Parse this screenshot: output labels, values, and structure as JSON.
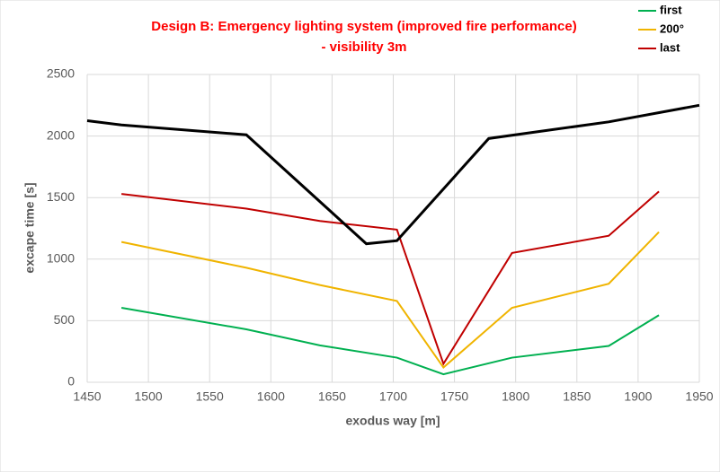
{
  "chart_data": {
    "type": "line",
    "title": [
      "Design B: Emergency lighting system (improved fire performance)",
      "- visibility 3m"
    ],
    "x_label": "exodus way [m]",
    "y_label": "excape time [s]",
    "xlim": [
      1450,
      1950
    ],
    "xticks": [
      1450,
      1500,
      1550,
      1600,
      1650,
      1700,
      1750,
      1800,
      1850,
      1900,
      1950
    ],
    "ylim": [
      0,
      2500
    ],
    "yticks": [
      0,
      500,
      1000,
      1500,
      2000,
      2500
    ],
    "grid": true,
    "legend": "top-right",
    "series": [
      {
        "name": "first",
        "color": "#00b050",
        "width": 2,
        "x": [
          1478,
          1580,
          1640,
          1703,
          1741,
          1797,
          1876,
          1917
        ],
        "values": [
          605,
          430,
          300,
          200,
          65,
          200,
          295,
          545
        ]
      },
      {
        "name": "200°",
        "color": "#f0b400",
        "width": 2,
        "x": [
          1478,
          1580,
          1640,
          1703,
          1741,
          1797,
          1876,
          1917
        ],
        "values": [
          1140,
          930,
          790,
          660,
          120,
          605,
          800,
          1220
        ]
      },
      {
        "name": "last",
        "color": "#c00000",
        "width": 2,
        "x": [
          1478,
          1580,
          1640,
          1703,
          1741,
          1797,
          1876,
          1917
        ],
        "values": [
          1530,
          1410,
          1310,
          1240,
          150,
          1050,
          1190,
          1550
        ]
      },
      {
        "color": "#000000",
        "width": 3,
        "x": [
          1450,
          1478,
          1580,
          1678,
          1703,
          1778,
          1876,
          1950
        ],
        "values": [
          2125,
          2090,
          2010,
          1125,
          1150,
          1980,
          2115,
          2250
        ]
      }
    ]
  }
}
